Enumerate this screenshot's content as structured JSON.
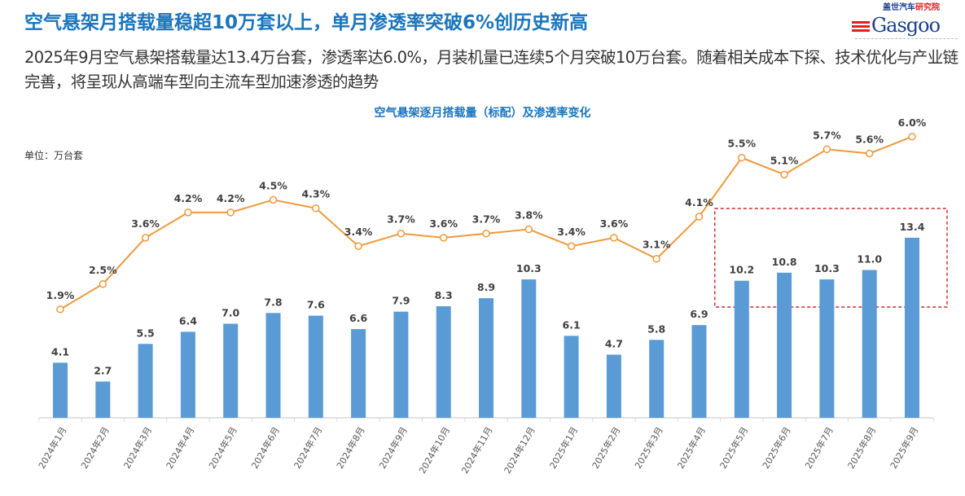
{
  "header": {
    "title": "空气悬架月搭载量稳超10万套以上，单月渗透率突破6%创历史新高",
    "subtitle": "2025年9月空气悬架搭载量达13.4万台套，渗透率达6.0%，月装机量已连续5个月突破10万台套。随着相关成本下探、技术优化与产业链完善，将呈现从高端车型向主流车型加速渗透的趋势"
  },
  "logo": {
    "cn_part1": "盖世汽车",
    "cn_part2": "研究院",
    "en": "Gasgoo"
  },
  "colors": {
    "title": "#1a75bc",
    "bar": "#5b9bd5",
    "line": "#ed9a3c",
    "highlight_box": "#c00000"
  },
  "chart_data": {
    "type": "bar+line",
    "title": "空气悬架逐月搭载量（标配）及渗透率变化",
    "unit_label": "单位：万台套",
    "categories": [
      "2024年1月",
      "2024年2月",
      "2024年3月",
      "2024年4月",
      "2024年5月",
      "2024年6月",
      "2024年7月",
      "2024年8月",
      "2024年9月",
      "2024年10月",
      "2024年11月",
      "2024年12月",
      "2025年1月",
      "2025年2月",
      "2025年3月",
      "2025年4月",
      "2025年5月",
      "2025年6月",
      "2025年7月",
      "2025年8月",
      "2025年9月"
    ],
    "series": [
      {
        "type": "bar",
        "values": [
          4.1,
          2.7,
          5.5,
          6.4,
          7.0,
          7.8,
          7.6,
          6.6,
          7.9,
          8.3,
          8.9,
          10.3,
          6.1,
          4.7,
          5.8,
          6.9,
          10.2,
          10.8,
          10.3,
          11.0,
          13.4
        ]
      },
      {
        "type": "line",
        "values": [
          1.9,
          2.5,
          3.6,
          4.2,
          4.2,
          4.5,
          4.3,
          3.4,
          3.7,
          3.6,
          3.7,
          3.8,
          3.4,
          3.6,
          3.1,
          4.1,
          5.5,
          5.1,
          5.7,
          5.6,
          6.0
        ],
        "unit": "%"
      }
    ],
    "highlight": {
      "from": "2025年5月",
      "to": "2025年9月",
      "style": "red dashed box"
    },
    "grid": false,
    "legend": "none"
  }
}
